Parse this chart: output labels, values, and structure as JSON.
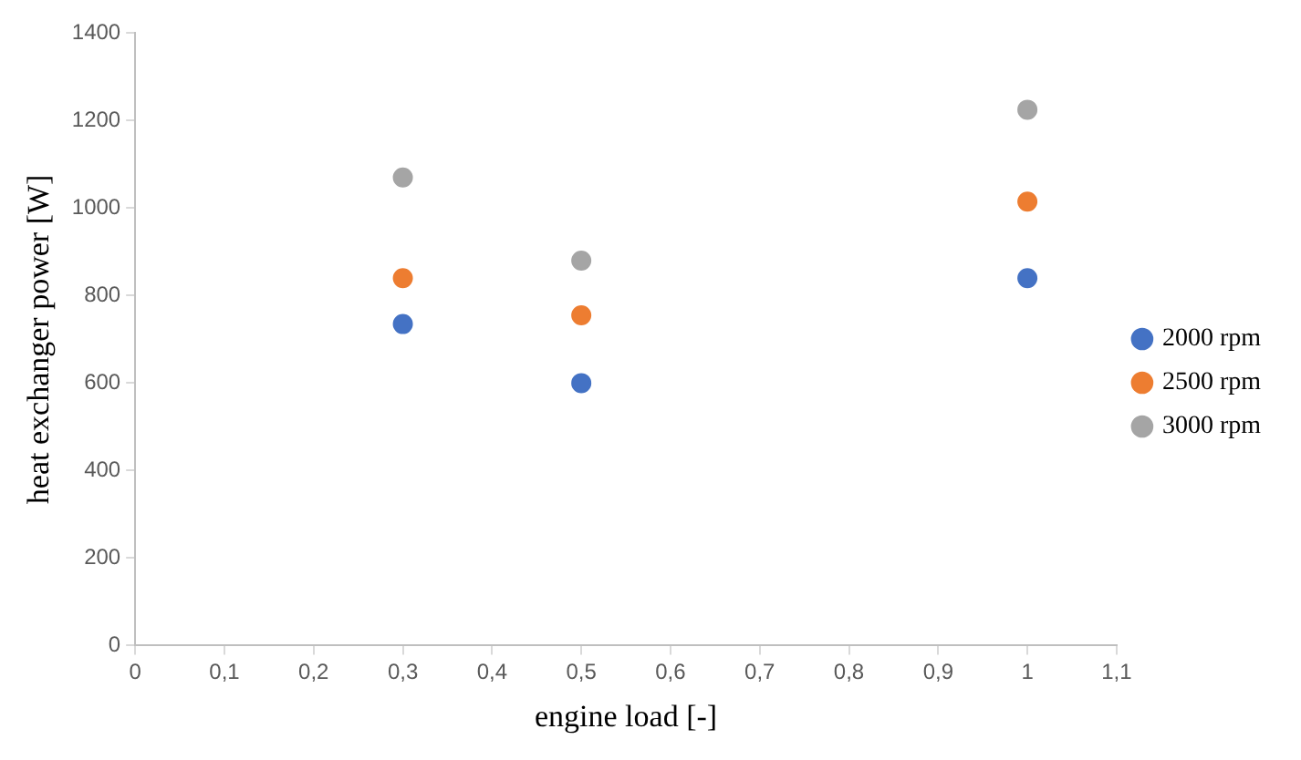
{
  "chart_data": {
    "type": "scatter",
    "xlabel": "engine load [-]",
    "ylabel": "heat exchanger power [W]",
    "xlim": [
      0,
      1.1
    ],
    "xticks": [
      0,
      {
        "value": 0.1,
        "label": "0,1"
      },
      {
        "value": 0.2,
        "label": "0,2"
      },
      {
        "value": 0.3,
        "label": "0,3"
      },
      {
        "value": 0.4,
        "label": "0,4"
      },
      {
        "value": 0.5,
        "label": "0,5"
      },
      {
        "value": 0.6,
        "label": "0,6"
      },
      {
        "value": 0.7,
        "label": "0,7"
      },
      {
        "value": 0.8,
        "label": "0,8"
      },
      {
        "value": 0.9,
        "label": "0,9"
      },
      1,
      {
        "value": 1.1,
        "label": "1,1"
      }
    ],
    "ylim": [
      0,
      1400
    ],
    "yticks": [
      0,
      200,
      400,
      600,
      800,
      1000,
      1200,
      1400
    ],
    "x": [
      0.3,
      0.5,
      1
    ],
    "series": [
      {
        "name": "2000 rpm",
        "color": "#4472c4",
        "values": [
          735,
          600,
          840
        ]
      },
      {
        "name": "2500 rpm",
        "color": "#ed7d31",
        "values": [
          840,
          755,
          1015
        ]
      },
      {
        "name": "3000 rpm",
        "color": "#a5a5a5",
        "values": [
          1070,
          880,
          1225
        ]
      }
    ],
    "marker": "circle",
    "grid": false,
    "legend": "right"
  }
}
